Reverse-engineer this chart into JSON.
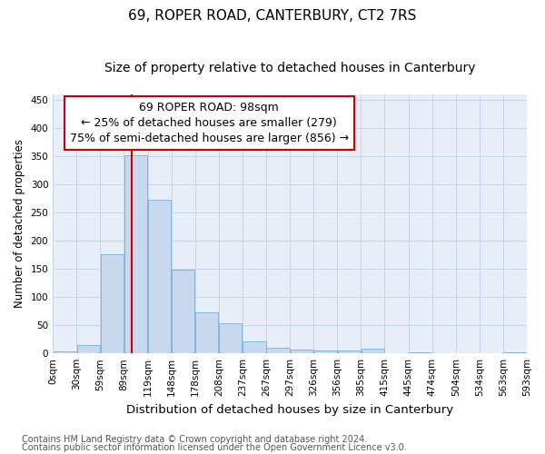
{
  "title": "69, ROPER ROAD, CANTERBURY, CT2 7RS",
  "subtitle": "Size of property relative to detached houses in Canterbury",
  "xlabel": "Distribution of detached houses by size in Canterbury",
  "ylabel": "Number of detached properties",
  "annotation_line1": "69 ROPER ROAD: 98sqm",
  "annotation_line2": "← 25% of detached houses are smaller (279)",
  "annotation_line3": "75% of semi-detached houses are larger (856) →",
  "footer_line1": "Contains HM Land Registry data © Crown copyright and database right 2024.",
  "footer_line2": "Contains public sector information licensed under the Open Government Licence v3.0.",
  "bar_heights": [
    3,
    15,
    175,
    351,
    272,
    148,
    72,
    54,
    22,
    10,
    6,
    5,
    5,
    8,
    0,
    2,
    0,
    0,
    0,
    2
  ],
  "n_bins": 20,
  "bin_width": 29.5,
  "bar_color": "#c8d9ee",
  "bar_edge_color": "#7aaed4",
  "vline_color": "#cc0000",
  "vline_x": 98,
  "ylim": [
    0,
    460
  ],
  "yticks": [
    0,
    50,
    100,
    150,
    200,
    250,
    300,
    350,
    400,
    450
  ],
  "grid_color": "#c8d4e8",
  "background_color": "#e8eef8",
  "box_facecolor": "#ffffff",
  "box_edgecolor": "#cc0000",
  "title_fontsize": 11,
  "subtitle_fontsize": 10,
  "annotation_fontsize": 9,
  "tick_label_fontsize": 7.5,
  "xlabel_fontsize": 9.5,
  "ylabel_fontsize": 8.5,
  "footer_fontsize": 7,
  "xtick_labels": [
    "0sqm",
    "30sqm",
    "59sqm",
    "89sqm",
    "119sqm",
    "148sqm",
    "178sqm",
    "208sqm",
    "237sqm",
    "267sqm",
    "297sqm",
    "326sqm",
    "356sqm",
    "385sqm",
    "415sqm",
    "445sqm",
    "474sqm",
    "504sqm",
    "534sqm",
    "563sqm",
    "593sqm"
  ]
}
